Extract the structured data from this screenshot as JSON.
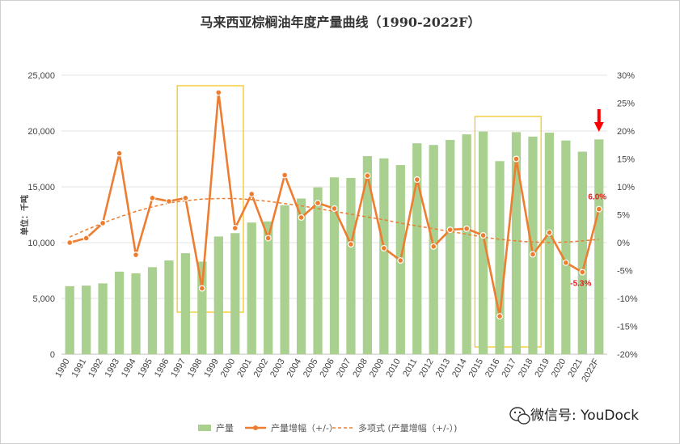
{
  "chart_data": {
    "type": "bar",
    "title": "马来西亚棕榈油年度产量曲线（1990-2022F）",
    "ylabel": "单位：千吨",
    "categories": [
      "1990",
      "1991",
      "1992",
      "1993",
      "1994",
      "1995",
      "1996",
      "1997",
      "1998",
      "1999",
      "2000",
      "2001",
      "2002",
      "2003",
      "2004",
      "2005",
      "2006",
      "2007",
      "2008",
      "2009",
      "2010",
      "2011",
      "2012",
      "2013",
      "2014",
      "2015",
      "2016",
      "2017",
      "2018",
      "2019",
      "2020",
      "2021",
      "2022F"
    ],
    "ylim": [
      0,
      25000
    ],
    "y_ticks": [
      "0",
      "5,000",
      "10,000",
      "15,000",
      "20,000",
      "25,000"
    ],
    "y2lim": [
      -20,
      30
    ],
    "y2_ticks": [
      "-20%",
      "-15%",
      "-10%",
      "-5%",
      "0%",
      "5%",
      "10%",
      "15%",
      "20%",
      "25%",
      "30%"
    ],
    "grid": true,
    "legend_position": "bottom",
    "series": [
      {
        "name": "产量",
        "type": "bar",
        "axis": "left",
        "color": "#a9d08e",
        "values": [
          6100,
          6150,
          6350,
          7400,
          7250,
          7800,
          8400,
          9050,
          8300,
          10550,
          10850,
          11800,
          11900,
          13350,
          13950,
          14950,
          15850,
          15800,
          17750,
          17550,
          16950,
          18900,
          18750,
          19200,
          19700,
          19950,
          17300,
          19900,
          19500,
          19850,
          19150,
          18150,
          19250
        ]
      },
      {
        "name": "产量增幅（+/-）",
        "type": "line",
        "axis": "right",
        "color": "#ed7d31",
        "values": [
          0.0,
          0.8,
          3.5,
          16.0,
          -2.2,
          8.0,
          7.4,
          8.0,
          -8.2,
          26.9,
          2.6,
          8.7,
          0.8,
          12.1,
          4.5,
          7.1,
          6.1,
          -0.3,
          12.0,
          -1.0,
          -3.2,
          11.3,
          -0.7,
          2.3,
          2.5,
          1.3,
          -13.2,
          15.0,
          -2.1,
          1.8,
          -3.6,
          -5.3,
          6.0
        ]
      },
      {
        "name": "多项式 (产量增幅（+/-）)",
        "type": "trendline",
        "axis": "right",
        "color": "#ed7d31",
        "values": [
          1.0,
          2.3,
          3.5,
          4.6,
          5.6,
          6.4,
          7.1,
          7.5,
          7.8,
          7.9,
          7.9,
          7.7,
          7.4,
          7.0,
          6.6,
          6.1,
          5.6,
          5.1,
          4.6,
          4.1,
          3.5,
          3.0,
          2.5,
          2.0,
          1.5,
          1.0,
          0.6,
          0.3,
          0.1,
          0.0,
          0.1,
          0.3,
          0.6
        ]
      }
    ],
    "annotations": [
      {
        "text": "6.0%",
        "category": "2022F"
      },
      {
        "text": "-5.3%",
        "category": "2021"
      }
    ],
    "highlight_boxes": [
      {
        "from": "1997",
        "to": "2000",
        "color": "#f4c20d"
      },
      {
        "from": "2015",
        "to": "2018",
        "color": "#f4c20d"
      }
    ],
    "arrow_marker": {
      "category": "2022F",
      "color": "#ff0000"
    }
  },
  "watermark": {
    "text": "微信号: YouDock",
    "icon": "wechat-icon"
  }
}
